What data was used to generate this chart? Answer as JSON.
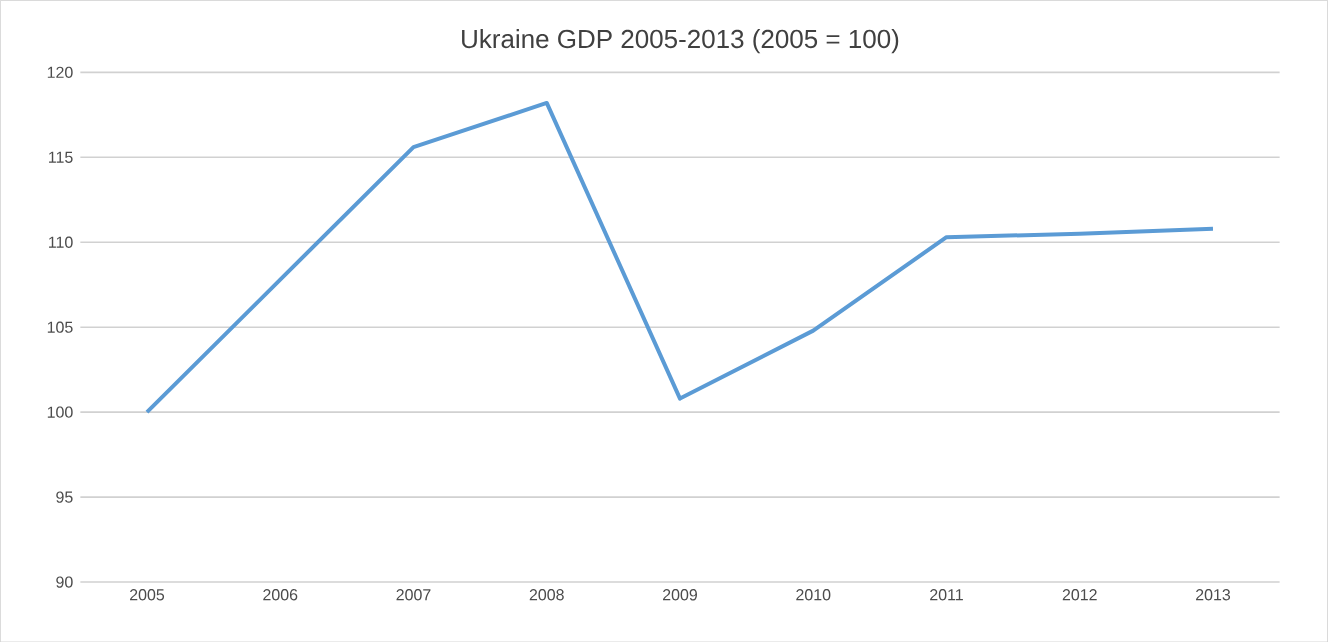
{
  "chart_data": {
    "type": "line",
    "title": "Ukraine GDP 2005-2013 (2005 = 100)",
    "categories": [
      "2005",
      "2006",
      "2007",
      "2008",
      "2009",
      "2010",
      "2011",
      "2012",
      "2013"
    ],
    "series": [
      {
        "color": "#5b9bd5",
        "values": [
          100,
          107.8,
          115.6,
          118.2,
          100.8,
          104.8,
          110.3,
          110.5,
          110.8
        ]
      }
    ],
    "ylim": [
      90,
      120
    ],
    "yticks": [
      90,
      95,
      100,
      105,
      110,
      115,
      120
    ],
    "grid": "y",
    "marker": "none",
    "line_style": "solid"
  }
}
